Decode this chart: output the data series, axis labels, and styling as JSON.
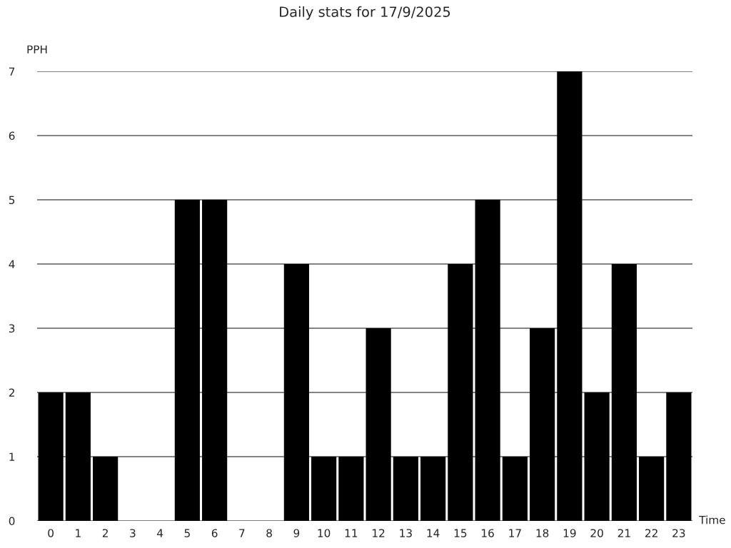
{
  "chart_data": {
    "type": "bar",
    "title": "Daily stats for 17/9/2025",
    "xlabel": "Time",
    "ylabel": "PPH",
    "categories": [
      "0",
      "1",
      "2",
      "3",
      "4",
      "5",
      "6",
      "7",
      "8",
      "9",
      "10",
      "11",
      "12",
      "13",
      "14",
      "15",
      "16",
      "17",
      "18",
      "19",
      "20",
      "21",
      "22",
      "23"
    ],
    "values": [
      2,
      2,
      1,
      0,
      0,
      5,
      5,
      0,
      0,
      4,
      1,
      1,
      3,
      1,
      1,
      4,
      5,
      1,
      3,
      7,
      2,
      4,
      1,
      2
    ],
    "color": "#000000",
    "ylim": [
      0,
      7
    ],
    "yticks": [
      0,
      1,
      2,
      3,
      4,
      5,
      6,
      7
    ],
    "grid": "y"
  }
}
